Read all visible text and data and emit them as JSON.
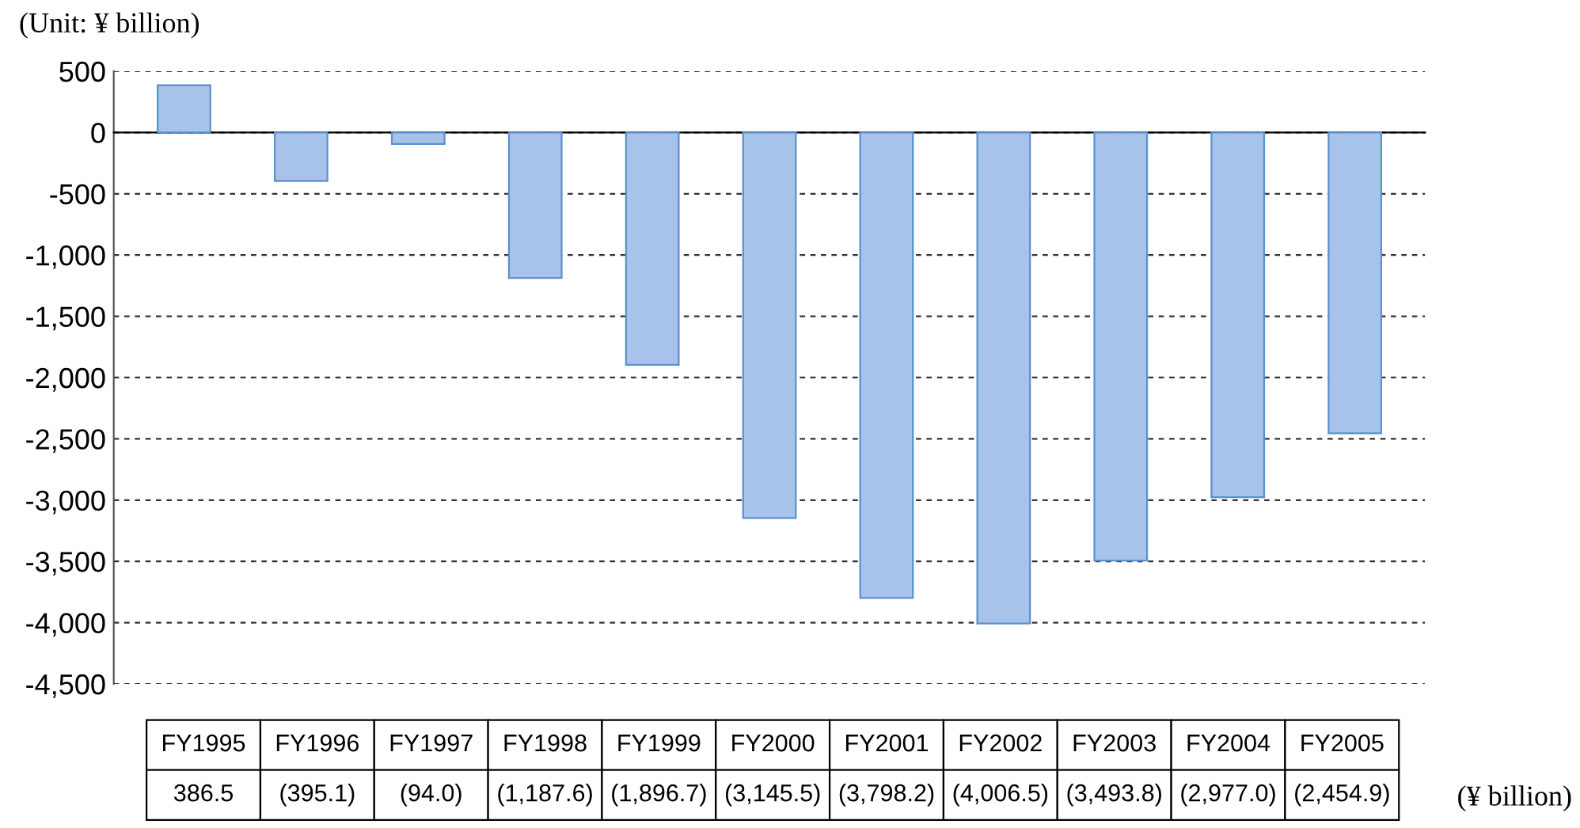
{
  "chart_data": {
    "type": "bar",
    "categories": [
      "FY1995",
      "FY1996",
      "FY1997",
      "FY1998",
      "FY1999",
      "FY2000",
      "FY2001",
      "FY2002",
      "FY2003",
      "FY2004",
      "FY2005"
    ],
    "values": [
      386.5,
      -395.1,
      -94.0,
      -1187.6,
      -1896.7,
      -3145.5,
      -3798.2,
      -4006.5,
      -3493.8,
      -2977.0,
      -2454.9
    ],
    "value_labels": [
      "386.5",
      "(395.1)",
      "(94.0)",
      "(1,187.6)",
      "(1,896.7)",
      "(3,145.5)",
      "(3,798.2)",
      "(4,006.5)",
      "(3,493.8)",
      "(2,977.0)",
      "(2,454.9)"
    ],
    "color": "#a8c3e9",
    "ylim": [
      -4500,
      500
    ],
    "yticks": [
      500,
      0,
      -500,
      {
        "value": -1000,
        "label": "-1,000"
      },
      {
        "value": -1500,
        "label": "-1,500"
      },
      {
        "value": -2000,
        "label": "-2,000"
      },
      {
        "value": -2500,
        "label": "-2,500"
      },
      {
        "value": -3000,
        "label": "-3,000"
      },
      {
        "value": -3500,
        "label": "-3,500"
      },
      {
        "value": -4000,
        "label": "-4,000"
      },
      {
        "value": -4500,
        "label": "-4,500"
      }
    ],
    "grid": "y",
    "annotations": [
      "(Unit: ¥ billion)",
      "(¥ billion)"
    ]
  }
}
